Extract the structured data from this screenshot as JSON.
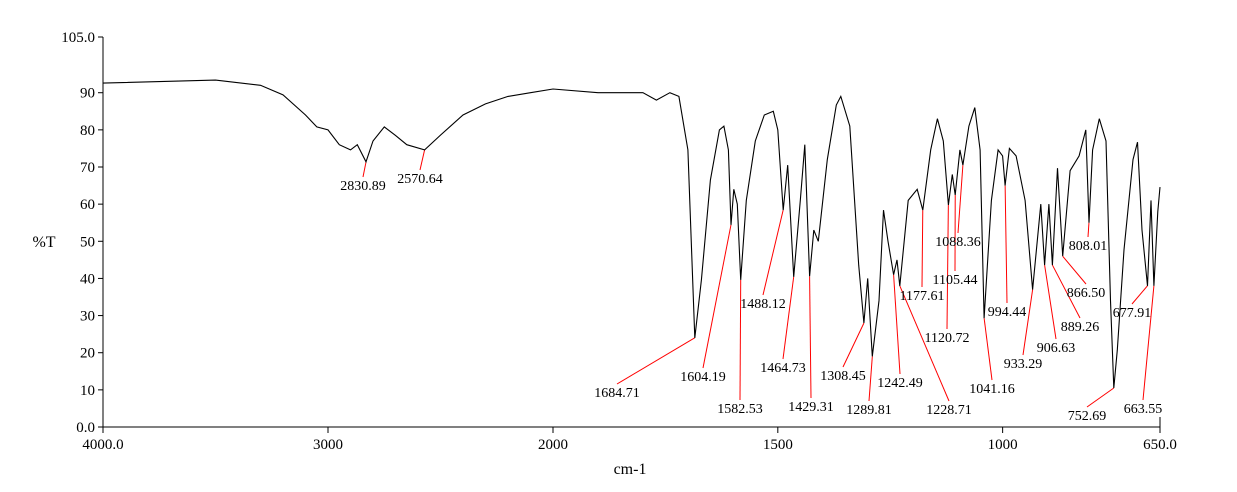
{
  "chart_data": {
    "type": "line",
    "title": "",
    "xlabel": "cm-1",
    "ylabel": "%T",
    "xlim": [
      4000,
      650
    ],
    "x_reversed": true,
    "x_scale_change_at": 2000,
    "ylim": [
      0,
      105
    ],
    "x_ticks": [
      "4000.0",
      "3000",
      "2000",
      "1500",
      "1000",
      "650.0"
    ],
    "x_tick_values": [
      4000,
      3000,
      2000,
      1500,
      1000,
      650
    ],
    "y_ticks": [
      "0.0",
      "10",
      "20",
      "30",
      "40",
      "50",
      "60",
      "70",
      "80",
      "90",
      "105.0"
    ],
    "y_tick_values": [
      0,
      10,
      20,
      30,
      40,
      50,
      60,
      70,
      80,
      90,
      105
    ],
    "grid": false,
    "line_color": "#000000",
    "peak_marker_color": "#ff0000",
    "series": [
      {
        "x": [
          4000,
          3500,
          3300,
          3200,
          3100,
          3050,
          3000,
          2950,
          2900,
          2870,
          2830.89,
          2800,
          2750,
          2700,
          2650,
          2570.64,
          2500,
          2400,
          2300,
          2200,
          2100,
          2000,
          1900,
          1800,
          1770,
          1740,
          1720,
          1700,
          1684.71,
          1670,
          1650,
          1630,
          1620,
          1610,
          1604.19,
          1598,
          1590,
          1582.53,
          1570,
          1550,
          1530,
          1510,
          1500,
          1488.12,
          1478,
          1464.73,
          1450,
          1440,
          1429.31,
          1420,
          1410,
          1390,
          1370,
          1360,
          1340,
          1320,
          1308.45,
          1300,
          1289.81,
          1275,
          1265,
          1255,
          1242.49,
          1235,
          1228.71,
          1210,
          1190,
          1177.61,
          1160,
          1145,
          1132,
          1120.72,
          1112,
          1105.44,
          1095,
          1088.36,
          1075,
          1062,
          1050,
          1041.16,
          1025,
          1010,
          1000,
          994.44,
          985,
          970,
          950,
          933.29,
          915,
          906.63,
          897,
          889.26,
          878,
          866.5,
          850,
          830,
          815,
          808.01,
          800,
          785,
          770,
          760,
          752.69,
          745,
          730,
          710,
          700,
          690,
          677.91,
          670,
          663.55,
          655,
          650
        ],
        "y": [
          92.6,
          93.4,
          92,
          89.4,
          84,
          80.8,
          80,
          76,
          74.6,
          76,
          71.4,
          77,
          80.8,
          78.5,
          76,
          74.6,
          78.6,
          84,
          87,
          89,
          90,
          91,
          90,
          90,
          88,
          90,
          89,
          74.6,
          24,
          39.6,
          66.5,
          80,
          81,
          74.6,
          54.4,
          64,
          60,
          39.6,
          61,
          77,
          84,
          85,
          80,
          58.4,
          70.5,
          40.4,
          61,
          76,
          40.6,
          53,
          50,
          72,
          86.7,
          89,
          81,
          43.6,
          28,
          40,
          19,
          34,
          58.4,
          50,
          41,
          45,
          38,
          61,
          64,
          58.4,
          74.6,
          83,
          77,
          59.8,
          68,
          62.5,
          74.6,
          70.5,
          81,
          86,
          74.6,
          29.3,
          61,
          74.6,
          73,
          65,
          75,
          73,
          61,
          37,
          60,
          43.6,
          60,
          43.6,
          69.7,
          46,
          69,
          73,
          80,
          55,
          74.6,
          83,
          77,
          34,
          10.5,
          20.7,
          47.7,
          72,
          76.7,
          53,
          38,
          61,
          38,
          58,
          64.6
        ]
      }
    ],
    "peaks": [
      {
        "label": "2830.89",
        "x": 2830.89,
        "y": 71.4
      },
      {
        "label": "2570.64",
        "x": 2570.64,
        "y": 74.6
      },
      {
        "label": "1684.71",
        "x": 1684.71,
        "y": 24
      },
      {
        "label": "1604.19",
        "x": 1604.19,
        "y": 54.4
      },
      {
        "label": "1582.53",
        "x": 1582.53,
        "y": 39.6
      },
      {
        "label": "1488.12",
        "x": 1488.12,
        "y": 58.4
      },
      {
        "label": "1464.73",
        "x": 1464.73,
        "y": 40.4
      },
      {
        "label": "1429.31",
        "x": 1429.31,
        "y": 40.6
      },
      {
        "label": "1308.45",
        "x": 1308.45,
        "y": 28
      },
      {
        "label": "1289.81",
        "x": 1289.81,
        "y": 19
      },
      {
        "label": "1242.49",
        "x": 1242.49,
        "y": 41
      },
      {
        "label": "1228.71",
        "x": 1228.71,
        "y": 38
      },
      {
        "label": "1177.61",
        "x": 1177.61,
        "y": 58.4
      },
      {
        "label": "1120.72",
        "x": 1120.72,
        "y": 59.8
      },
      {
        "label": "1105.44",
        "x": 1105.44,
        "y": 62.5
      },
      {
        "label": "1088.36",
        "x": 1088.36,
        "y": 70.5
      },
      {
        "label": "1041.16",
        "x": 1041.16,
        "y": 29.3
      },
      {
        "label": "994.44",
        "x": 994.44,
        "y": 65
      },
      {
        "label": "933.29",
        "x": 933.29,
        "y": 37
      },
      {
        "label": "906.63",
        "x": 906.63,
        "y": 43.6
      },
      {
        "label": "889.26",
        "x": 889.26,
        "y": 43.6
      },
      {
        "label": "866.50",
        "x": 866.5,
        "y": 46
      },
      {
        "label": "808.01",
        "x": 808.01,
        "y": 55
      },
      {
        "label": "752.69",
        "x": 752.69,
        "y": 10.5
      },
      {
        "label": "677.91",
        "x": 677.91,
        "y": 38
      },
      {
        "label": "663.55",
        "x": 663.55,
        "y": 38
      }
    ]
  }
}
